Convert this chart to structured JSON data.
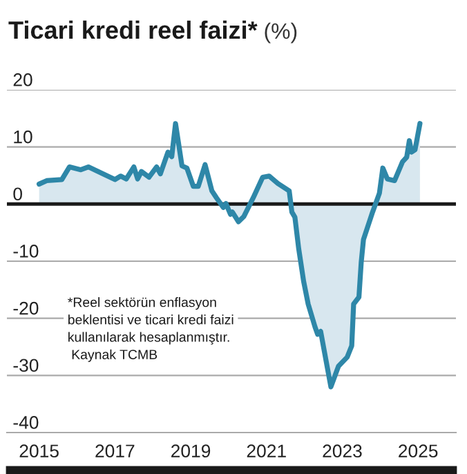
{
  "chart_data": {
    "type": "area",
    "title": "Ticari kredi reel faizi*",
    "subtitle": "(%)",
    "annotations": [
      "*Reel sektörün enflasyon\nbeklentisi ve ticari kredi faizi\nkullanılarak hesaplanmıştır.",
      " Kaynak TCMB"
    ],
    "x": [
      2015.0,
      2015.2,
      2015.6,
      2015.8,
      2016.1,
      2016.3,
      2017.0,
      2017.15,
      2017.3,
      2017.5,
      2017.6,
      2017.7,
      2017.9,
      2018.1,
      2018.2,
      2018.4,
      2018.5,
      2018.6,
      2018.77,
      2018.9,
      2019.07,
      2019.2,
      2019.38,
      2019.56,
      2019.68,
      2019.86,
      2019.93,
      2020.05,
      2020.1,
      2020.26,
      2020.4,
      2020.65,
      2020.9,
      2021.07,
      2021.3,
      2021.6,
      2021.67,
      2021.75,
      2021.85,
      2021.98,
      2022.1,
      2022.28,
      2022.35,
      2022.43,
      2022.7,
      2022.9,
      2023.13,
      2023.25,
      2023.3,
      2023.44,
      2023.5,
      2023.56,
      2023.8,
      2023.98,
      2024.07,
      2024.19,
      2024.38,
      2024.59,
      2024.7,
      2024.77,
      2024.83,
      2024.92,
      2025.05
    ],
    "series": [
      {
        "color": "#2e87a8",
        "values": [
          3.5,
          4.1,
          4.3,
          6.5,
          6.0,
          6.5,
          4.3,
          4.9,
          4.4,
          6.5,
          4.4,
          5.7,
          4.7,
          6.5,
          5.3,
          9.1,
          8.3,
          14.1,
          6.7,
          6.3,
          3.1,
          3.1,
          6.9,
          2.3,
          1.1,
          -0.6,
          0.1,
          -1.8,
          -1.4,
          -3.1,
          -2.2,
          1.1,
          4.7,
          4.9,
          3.6,
          2.3,
          -1.4,
          -2.3,
          -7.8,
          -13.5,
          -17.5,
          -21.5,
          -22.8,
          -22.3,
          -32.0,
          -28.4,
          -26.8,
          -24.8,
          -17.5,
          -16.3,
          -10.2,
          -6.2,
          -1.4,
          1.9,
          6.3,
          4.4,
          4.1,
          7.4,
          8.2,
          11.1,
          9.1,
          9.5,
          14.1
        ]
      }
    ],
    "xlim": [
      2014.15,
      2026
    ],
    "xticks": [
      2015,
      2017,
      2019,
      2021,
      2023,
      2025
    ],
    "ylim": [
      -40,
      20
    ],
    "yticks": [
      -40,
      -30,
      -20,
      -10,
      0,
      10,
      20
    ],
    "grid": "y",
    "ref_lines": [
      {
        "axis": "y",
        "value": 0,
        "color": "#1a1a1a"
      }
    ]
  }
}
